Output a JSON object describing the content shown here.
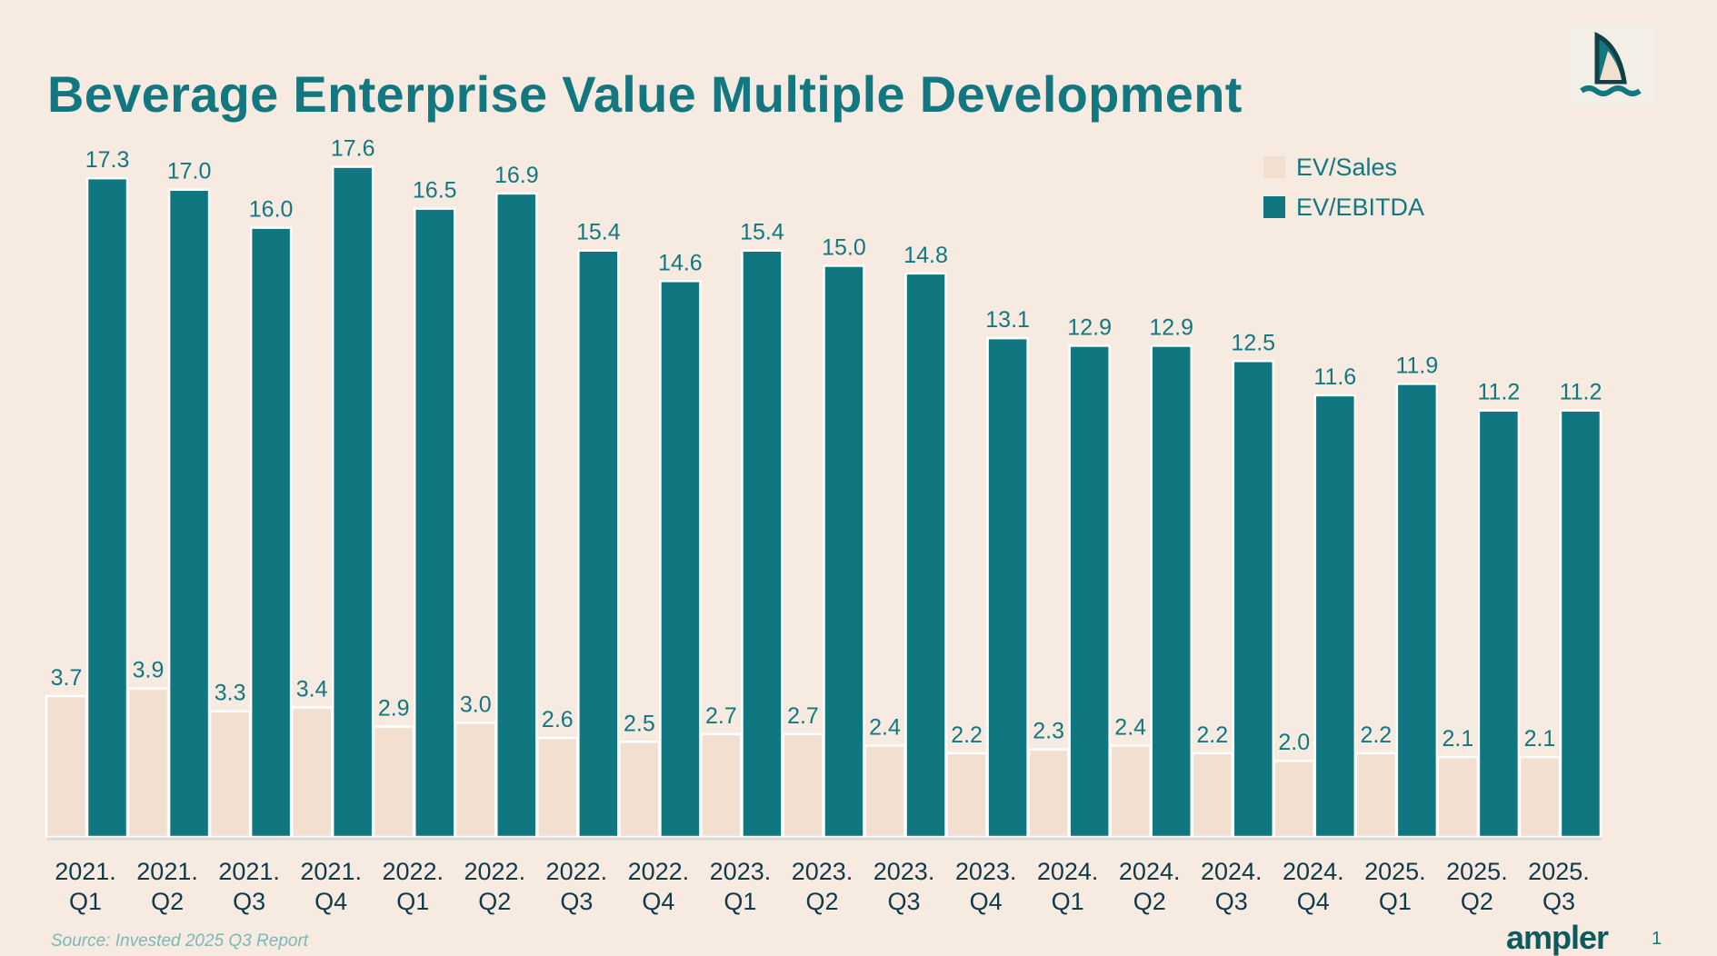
{
  "title": "Beverage Enterprise Value Multiple Development",
  "source": "Source: Invested 2025 Q3 Report",
  "brand": "ampler",
  "page_number": "1",
  "colors": {
    "background": "#f6eae1",
    "ev_sales": "#f2dfcf",
    "ev_ebitda": "#107680",
    "title": "#137780"
  },
  "chart_data": {
    "type": "bar",
    "title": "Beverage Enterprise Value Multiple Development",
    "xlabel": "",
    "ylabel": "",
    "categories": [
      [
        "2021.",
        "Q1"
      ],
      [
        "2021.",
        "Q2"
      ],
      [
        "2021.",
        "Q3"
      ],
      [
        "2021.",
        "Q4"
      ],
      [
        "2022.",
        "Q1"
      ],
      [
        "2022.",
        "Q2"
      ],
      [
        "2022.",
        "Q3"
      ],
      [
        "2022.",
        "Q4"
      ],
      [
        "2023.",
        "Q1"
      ],
      [
        "2023.",
        "Q2"
      ],
      [
        "2023.",
        "Q3"
      ],
      [
        "2023.",
        "Q4"
      ],
      [
        "2024.",
        "Q1"
      ],
      [
        "2024.",
        "Q2"
      ],
      [
        "2024.",
        "Q3"
      ],
      [
        "2024.",
        "Q4"
      ],
      [
        "2025.",
        "Q1"
      ],
      [
        "2025.",
        "Q2"
      ],
      [
        "2025.",
        "Q3"
      ]
    ],
    "series": [
      {
        "name": "EV/Sales",
        "color": "#f2dfcf",
        "values": [
          3.7,
          3.9,
          3.3,
          3.4,
          2.9,
          3.0,
          2.6,
          2.5,
          2.7,
          2.7,
          2.4,
          2.2,
          2.3,
          2.4,
          2.2,
          2.0,
          2.2,
          2.1,
          2.1
        ]
      },
      {
        "name": "EV/EBITDA",
        "color": "#107680",
        "values": [
          17.3,
          17.0,
          16.0,
          17.6,
          16.5,
          16.9,
          15.4,
          14.6,
          15.4,
          15.0,
          14.8,
          13.1,
          12.9,
          12.9,
          12.5,
          11.6,
          11.9,
          11.2,
          11.2
        ]
      }
    ],
    "ylim": [
      0,
      17.6
    ],
    "grid": false,
    "data_labels": true,
    "legend_position": "top-right"
  }
}
